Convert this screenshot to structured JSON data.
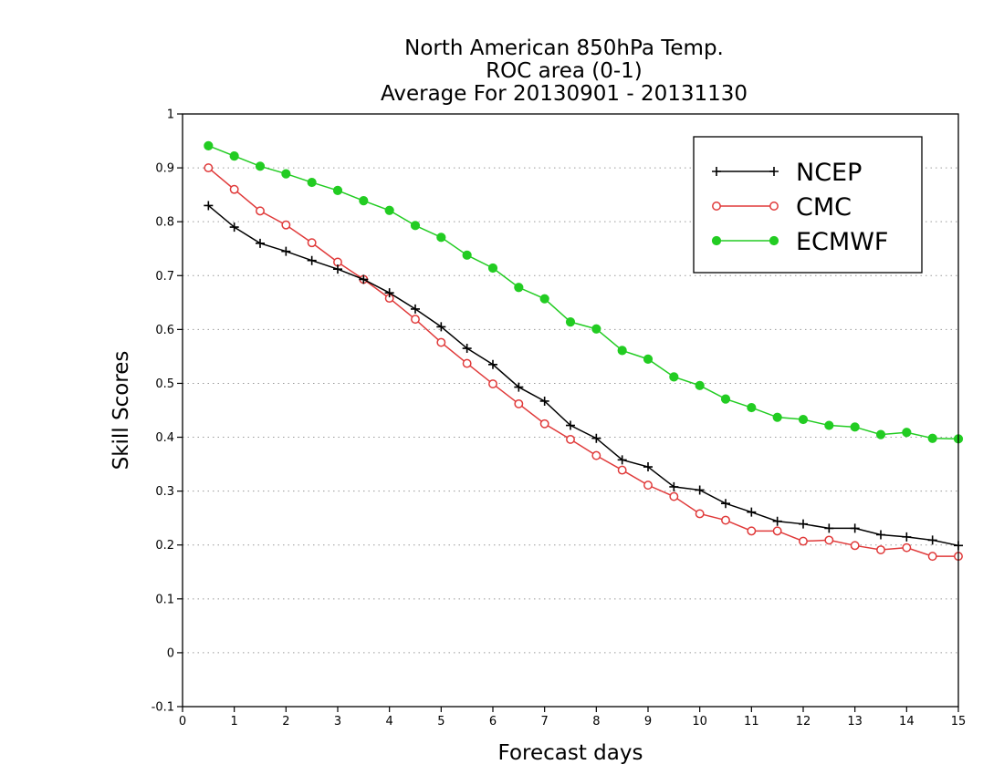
{
  "chart_data": {
    "type": "line",
    "title_lines": [
      "North American 850hPa Temp.",
      "ROC area (0-1)",
      "Average For 20130901 - 20131130"
    ],
    "xlabel": "Forecast days",
    "ylabel": "Skill Scores",
    "xlim": [
      0,
      15
    ],
    "ylim": [
      -0.1,
      1
    ],
    "x_ticks": [
      "0",
      "1",
      "2",
      "3",
      "4",
      "5",
      "6",
      "7",
      "8",
      "9",
      "10",
      "11",
      "12",
      "13",
      "14",
      "15"
    ],
    "y_ticks": [
      "-0.1",
      "0",
      "0.1",
      "0.2",
      "0.3",
      "0.4",
      "0.5",
      "0.6",
      "0.7",
      "0.8",
      "0.9",
      "1"
    ],
    "grid": "horizontal dotted",
    "legend_position": "top-right",
    "x": [
      0.5,
      1,
      1.5,
      2,
      2.5,
      3,
      3.5,
      4,
      4.5,
      5,
      5.5,
      6,
      6.5,
      7,
      7.5,
      8,
      8.5,
      9,
      9.5,
      10,
      10.5,
      11,
      11.5,
      12,
      12.5,
      13,
      13.5,
      14,
      14.5,
      15
    ],
    "series": [
      {
        "name": "NCEP",
        "color": "#000000",
        "marker": "plus",
        "values": [
          0.83,
          0.79,
          0.76,
          0.745,
          0.728,
          0.712,
          0.693,
          0.668,
          0.638,
          0.605,
          0.565,
          0.535,
          0.493,
          0.467,
          0.422,
          0.398,
          0.358,
          0.345,
          0.308,
          0.302,
          0.277,
          0.261,
          0.244,
          0.239,
          0.231,
          0.231,
          0.219,
          0.215,
          0.209,
          0.199
        ]
      },
      {
        "name": "CMC",
        "color": "#e03a3a",
        "marker": "open-circle",
        "values": [
          0.9,
          0.86,
          0.82,
          0.794,
          0.761,
          0.725,
          0.693,
          0.658,
          0.619,
          0.576,
          0.537,
          0.499,
          0.462,
          0.425,
          0.396,
          0.366,
          0.339,
          0.311,
          0.29,
          0.258,
          0.246,
          0.226,
          0.226,
          0.207,
          0.209,
          0.199,
          0.191,
          0.195,
          0.179,
          0.179
        ]
      },
      {
        "name": "ECMWF",
        "color": "#22cc22",
        "marker": "filled-circle",
        "values": [
          0.941,
          0.922,
          0.903,
          0.889,
          0.873,
          0.858,
          0.839,
          0.821,
          0.793,
          0.771,
          0.738,
          0.714,
          0.678,
          0.657,
          0.614,
          0.601,
          0.561,
          0.545,
          0.512,
          0.496,
          0.471,
          0.455,
          0.437,
          0.433,
          0.422,
          0.419,
          0.405,
          0.409,
          0.398,
          0.397
        ]
      }
    ]
  }
}
